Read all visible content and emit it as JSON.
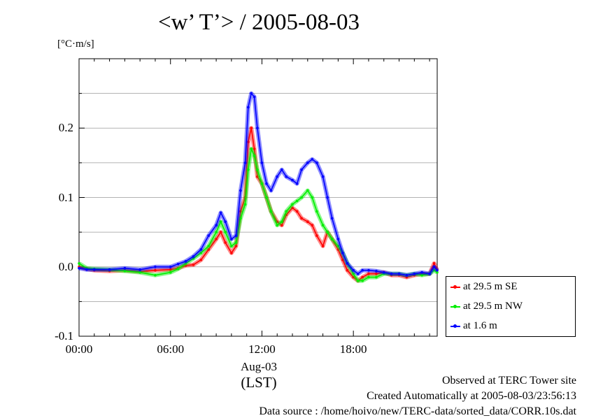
{
  "title": "<w’ T’> / 2005-08-03",
  "unit": "[°C·m/s]",
  "date_label": "Aug-03",
  "tz_label": "(LST)",
  "footer": {
    "line1": "Observed at TERC Tower site",
    "line2": "Created Automatically at 2005-08-03/23:56:13",
    "line3": "Data source : /home/hoivo/new/TERC-data/sorted_data/CORR.10s.dat"
  },
  "chart_data": {
    "type": "line",
    "title": "<w’ T’> / 2005-08-03",
    "xlabel": "(LST)",
    "ylabel": "[°C·m/s]",
    "xlim": [
      0,
      23.5
    ],
    "ylim": [
      -0.1,
      0.3
    ],
    "x_ticks": [
      {
        "value": 0,
        "label": "00:00"
      },
      {
        "value": 6,
        "label": "06:00"
      },
      {
        "value": 12,
        "label": "12:00"
      },
      {
        "value": 18,
        "label": "18:00"
      }
    ],
    "y_ticks": [
      {
        "value": -0.1,
        "label": "-0.1"
      },
      {
        "value": 0.0,
        "label": "0.0"
      },
      {
        "value": 0.1,
        "label": "0.1"
      },
      {
        "value": 0.2,
        "label": "0.2"
      }
    ],
    "grid": true,
    "legend_position": "bottom-right outside",
    "series": [
      {
        "name": "at 29.5 m SE",
        "color": "#ff0000",
        "x": [
          0,
          0.5,
          1,
          2,
          3,
          4,
          5,
          6,
          6.5,
          7,
          7.5,
          8,
          8.5,
          9,
          9.3,
          9.6,
          10,
          10.3,
          10.6,
          10.9,
          11.1,
          11.3,
          11.5,
          11.7,
          12,
          12.3,
          12.6,
          13,
          13.3,
          13.6,
          14,
          14.3,
          14.6,
          15,
          15.3,
          15.6,
          16,
          16.3,
          16.6,
          17,
          17.3,
          17.6,
          18,
          18.3,
          18.6,
          19,
          19.5,
          20,
          20.5,
          21,
          21.5,
          22,
          22.5,
          23,
          23.3,
          23.5
        ],
        "y": [
          0.0,
          -0.003,
          -0.005,
          -0.006,
          -0.005,
          -0.007,
          -0.005,
          -0.004,
          -0.002,
          0.002,
          0.003,
          0.01,
          0.025,
          0.04,
          0.05,
          0.035,
          0.02,
          0.03,
          0.08,
          0.1,
          0.18,
          0.2,
          0.17,
          0.13,
          0.12,
          0.1,
          0.08,
          0.065,
          0.06,
          0.075,
          0.085,
          0.08,
          0.07,
          0.065,
          0.06,
          0.045,
          0.03,
          0.05,
          0.04,
          0.025,
          0.01,
          -0.005,
          -0.015,
          -0.02,
          -0.015,
          -0.01,
          -0.01,
          -0.008,
          -0.012,
          -0.012,
          -0.015,
          -0.012,
          -0.01,
          -0.01,
          0.005,
          -0.005
        ]
      },
      {
        "name": "at 29.5 m NW",
        "color": "#00ee00",
        "x": [
          0,
          0.5,
          1,
          2,
          3,
          4,
          5,
          6,
          6.5,
          7,
          7.5,
          8,
          8.5,
          9,
          9.3,
          9.6,
          10,
          10.3,
          10.6,
          10.9,
          11.1,
          11.3,
          11.5,
          11.7,
          12,
          12.3,
          12.6,
          13,
          13.3,
          13.6,
          14,
          14.3,
          14.6,
          15,
          15.3,
          15.6,
          16,
          16.3,
          16.6,
          17,
          17.3,
          17.6,
          18,
          18.3,
          18.6,
          19,
          19.5,
          20,
          20.5,
          21,
          21.5,
          22,
          22.5,
          23,
          23.3,
          23.5
        ],
        "y": [
          0.005,
          -0.002,
          -0.003,
          -0.004,
          -0.006,
          -0.008,
          -0.012,
          -0.008,
          -0.003,
          0.005,
          0.012,
          0.02,
          0.03,
          0.05,
          0.065,
          0.05,
          0.03,
          0.035,
          0.07,
          0.09,
          0.14,
          0.17,
          0.16,
          0.14,
          0.12,
          0.1,
          0.08,
          0.06,
          0.065,
          0.08,
          0.09,
          0.095,
          0.1,
          0.11,
          0.1,
          0.08,
          0.06,
          0.05,
          0.04,
          0.03,
          0.02,
          0.005,
          -0.01,
          -0.02,
          -0.02,
          -0.015,
          -0.015,
          -0.01,
          -0.01,
          -0.01,
          -0.012,
          -0.01,
          -0.012,
          -0.01,
          -0.005,
          -0.008
        ]
      },
      {
        "name": "at 1.6 m",
        "color": "#0000ff",
        "x": [
          0,
          0.5,
          1,
          2,
          3,
          4,
          5,
          6,
          6.5,
          7,
          7.5,
          8,
          8.5,
          9,
          9.3,
          9.6,
          10,
          10.3,
          10.6,
          10.9,
          11.1,
          11.3,
          11.5,
          11.7,
          12,
          12.3,
          12.6,
          13,
          13.3,
          13.6,
          14,
          14.3,
          14.6,
          15,
          15.3,
          15.6,
          16,
          16.3,
          16.6,
          17,
          17.3,
          17.6,
          18,
          18.3,
          18.6,
          19,
          19.5,
          20,
          20.5,
          21,
          21.5,
          22,
          22.5,
          23,
          23.3,
          23.5
        ],
        "y": [
          -0.002,
          -0.004,
          -0.004,
          -0.004,
          -0.002,
          -0.004,
          0.0,
          0.0,
          0.004,
          0.008,
          0.015,
          0.025,
          0.045,
          0.06,
          0.078,
          0.065,
          0.04,
          0.045,
          0.11,
          0.15,
          0.23,
          0.25,
          0.245,
          0.2,
          0.15,
          0.12,
          0.11,
          0.13,
          0.14,
          0.13,
          0.125,
          0.12,
          0.14,
          0.15,
          0.155,
          0.15,
          0.13,
          0.1,
          0.07,
          0.04,
          0.02,
          0.005,
          -0.005,
          -0.01,
          -0.005,
          -0.005,
          -0.006,
          -0.008,
          -0.01,
          -0.01,
          -0.012,
          -0.01,
          -0.008,
          -0.01,
          0.0,
          -0.005
        ]
      }
    ]
  }
}
